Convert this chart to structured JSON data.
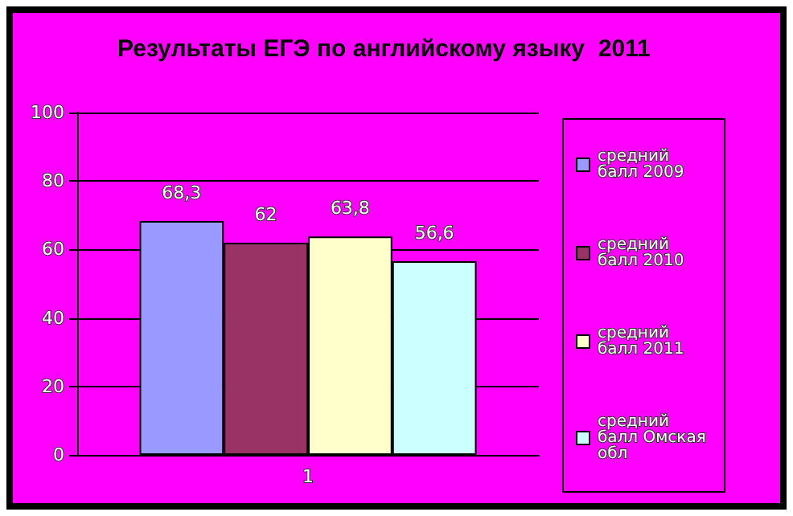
{
  "chart_data": {
    "type": "bar",
    "title": "Результаты ЕГЭ по английскому языку  2011",
    "categories": [
      "1"
    ],
    "series": [
      {
        "name": "средний балл 2009",
        "color": "#9999ff",
        "values": [
          68.3
        ],
        "value_labels": [
          "68,3"
        ]
      },
      {
        "name": "средний балл 2010",
        "color": "#993366",
        "values": [
          62
        ],
        "value_labels": [
          "62"
        ]
      },
      {
        "name": "средний балл 2011",
        "color": "#ffffcc",
        "values": [
          63.8
        ],
        "value_labels": [
          "63,8"
        ]
      },
      {
        "name": "средний балл Омская обл",
        "color": "#ccffff",
        "values": [
          56.6
        ],
        "value_labels": [
          "56,6"
        ]
      }
    ],
    "ylim": [
      0,
      100
    ],
    "yticks": [
      0,
      20,
      40,
      60,
      80,
      100
    ],
    "grid": "y",
    "legend": "right"
  }
}
